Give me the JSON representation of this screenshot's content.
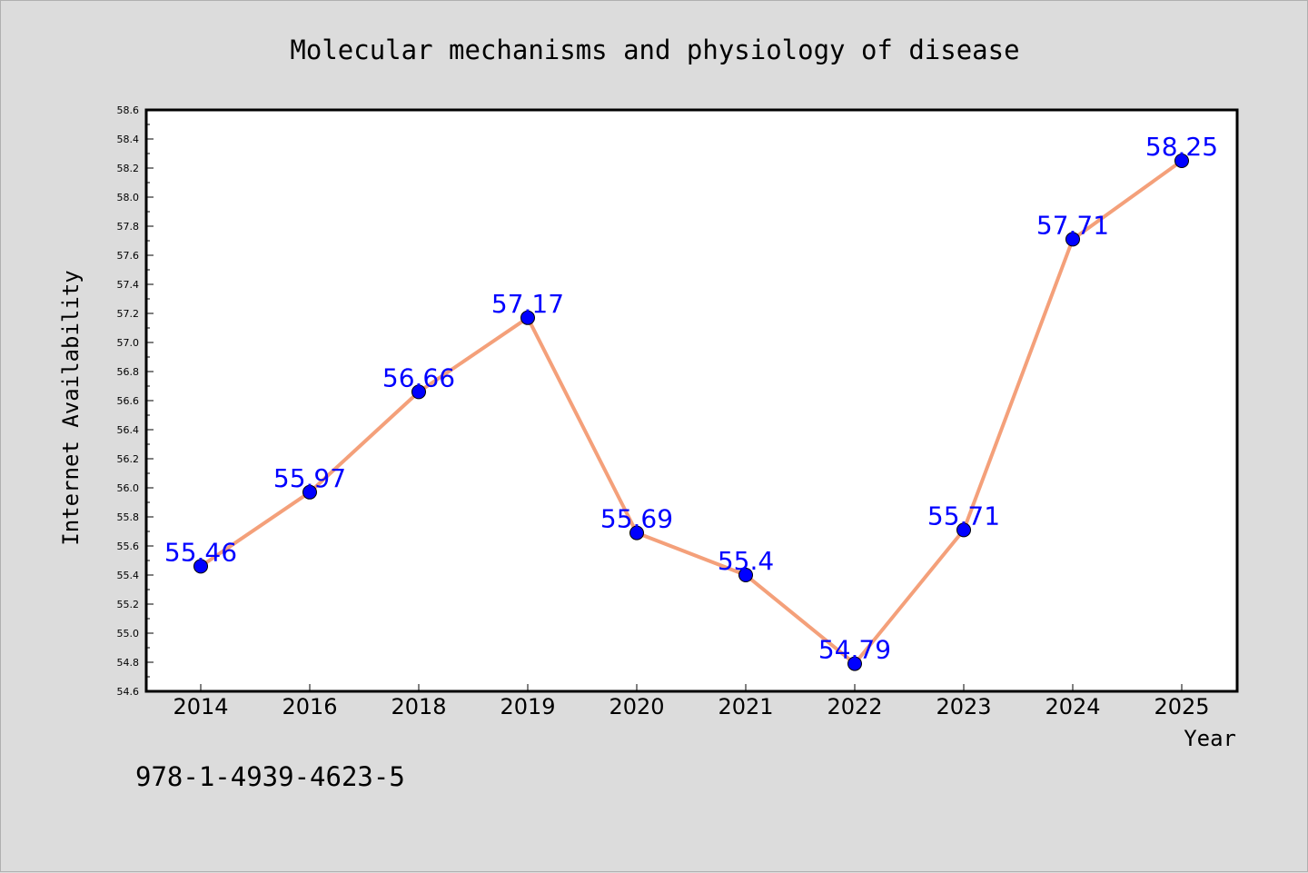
{
  "chart_data": {
    "type": "line",
    "title": "Molecular mechanisms and physiology of disease",
    "xlabel": "Year",
    "ylabel": "Internet Availability",
    "categories": [
      "2014",
      "2016",
      "2018",
      "2019",
      "2020",
      "2021",
      "2022",
      "2023",
      "2024",
      "2025"
    ],
    "values": [
      55.46,
      55.97,
      56.66,
      57.17,
      55.69,
      55.4,
      54.79,
      55.71,
      57.71,
      58.25
    ],
    "data_labels": [
      "55.46",
      "55.97",
      "56.66",
      "57.17",
      "55.69",
      "55.4",
      "54.79",
      "55.71",
      "57.71",
      "58.25"
    ],
    "ylim": [
      54.6,
      58.6
    ],
    "yticks": [
      "54.6",
      "54.8",
      "55.0",
      "55.2",
      "55.4",
      "55.6",
      "55.8",
      "56.0",
      "56.2",
      "56.4",
      "56.6",
      "56.8",
      "57.0",
      "57.2",
      "57.4",
      "57.6",
      "57.8",
      "58.0",
      "58.2",
      "58.4",
      "58.6"
    ],
    "grid": false,
    "legend": "none",
    "colors": {
      "background": "#dcdcdc",
      "plot_area": "#ffffff",
      "line": "#f4a07a",
      "marker": "#0000ff",
      "data_label": "#0000ff"
    }
  },
  "footer": {
    "isbn": "978-1-4939-4623-5"
  }
}
